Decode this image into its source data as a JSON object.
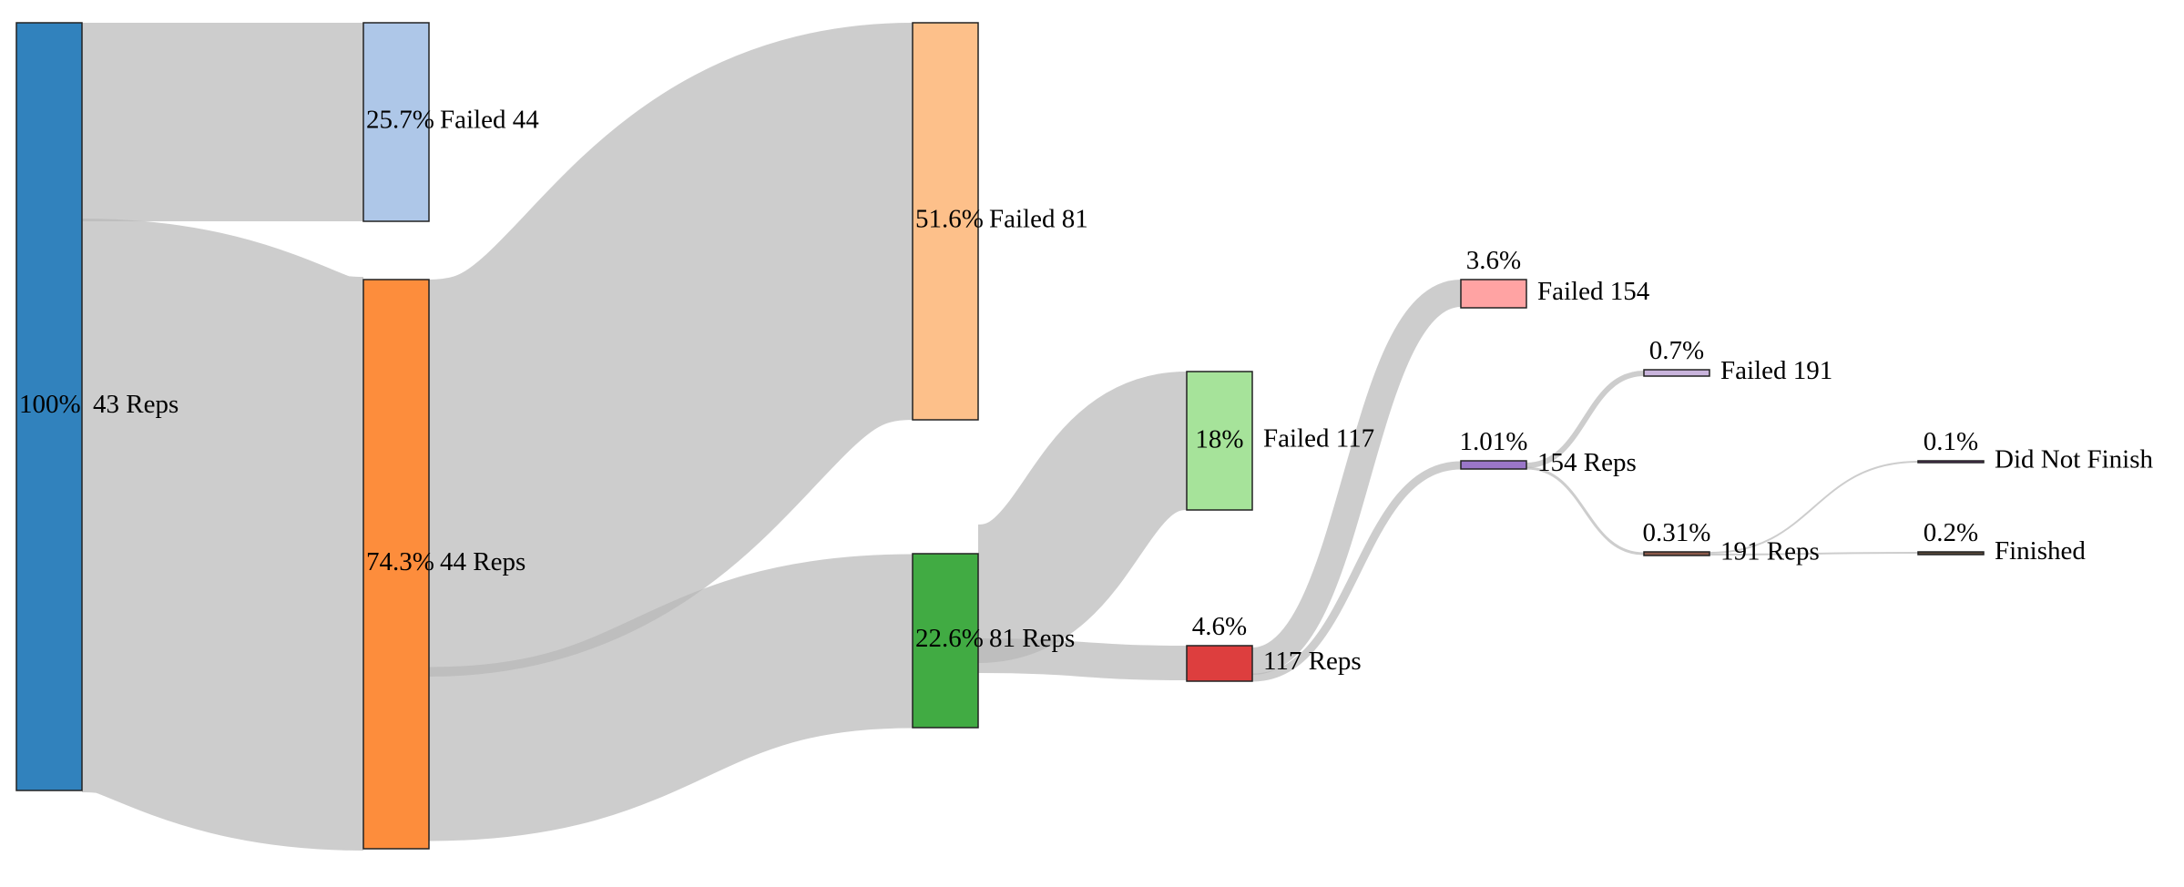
{
  "diagram": {
    "type": "sankey",
    "nodes": [
      {
        "id": "n43",
        "name": "43 Reps",
        "percent": "100%",
        "color": "#3182bd"
      },
      {
        "id": "f44",
        "name": "Failed 44",
        "percent": "25.7%",
        "color": "#aec7e8"
      },
      {
        "id": "n44",
        "name": "44 Reps",
        "percent": "74.3%",
        "color": "#fd8d3c"
      },
      {
        "id": "f81",
        "name": "Failed 81",
        "percent": "51.6%",
        "color": "#fdc08a"
      },
      {
        "id": "n81",
        "name": "81 Reps",
        "percent": "22.6%",
        "color": "#41ab43"
      },
      {
        "id": "f117",
        "name": "Failed 117",
        "percent": "18%",
        "color": "#a6e39a"
      },
      {
        "id": "n117",
        "name": "117 Reps",
        "percent": "4.6%",
        "color": "#dd3e3e"
      },
      {
        "id": "f154",
        "name": "Failed 154",
        "percent": "3.6%",
        "color": "#ffa3a3"
      },
      {
        "id": "n154",
        "name": "154 Reps",
        "percent": "1.01%",
        "color": "#9a76c8"
      },
      {
        "id": "f191",
        "name": "Failed 191",
        "percent": "0.7%",
        "color": "#c9b4dc"
      },
      {
        "id": "n191",
        "name": "191 Reps",
        "percent": "0.31%",
        "color": "#8c5a4a"
      },
      {
        "id": "dnf",
        "name": "Did Not Finish",
        "percent": "0.1%",
        "color": "#7b3f8c"
      },
      {
        "id": "fin",
        "name": "Finished",
        "percent": "0.2%",
        "color": "#5a4a3a"
      }
    ],
    "links": [
      {
        "source": "n43",
        "target": "f44",
        "value": 25.7
      },
      {
        "source": "n43",
        "target": "n44",
        "value": 74.3
      },
      {
        "source": "n44",
        "target": "f81",
        "value": 51.6
      },
      {
        "source": "n44",
        "target": "n81",
        "value": 22.6
      },
      {
        "source": "n81",
        "target": "f117",
        "value": 18
      },
      {
        "source": "n81",
        "target": "n117",
        "value": 4.6
      },
      {
        "source": "n117",
        "target": "f154",
        "value": 3.6
      },
      {
        "source": "n117",
        "target": "n154",
        "value": 1.01
      },
      {
        "source": "n154",
        "target": "f191",
        "value": 0.7
      },
      {
        "source": "n154",
        "target": "n191",
        "value": 0.31
      },
      {
        "source": "n191",
        "target": "dnf",
        "value": 0.1
      },
      {
        "source": "n191",
        "target": "fin",
        "value": 0.2
      }
    ]
  }
}
